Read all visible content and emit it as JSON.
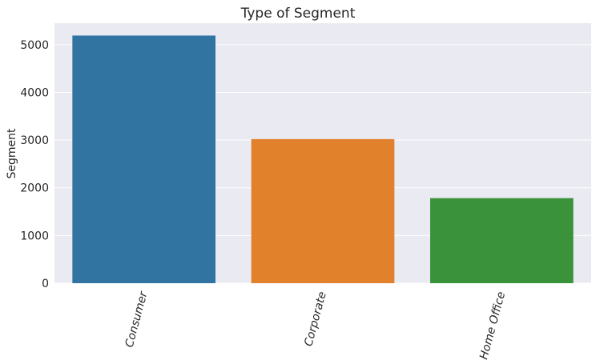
{
  "chart_data": {
    "type": "bar",
    "title": "Type of Segment",
    "xlabel": "",
    "ylabel": "Segment",
    "categories": [
      "Consumer",
      "Corporate",
      "Home Office"
    ],
    "values": [
      5191,
      3020,
      1783
    ],
    "yticks": [
      0,
      1000,
      2000,
      3000,
      4000,
      5000
    ],
    "ytick_labels": [
      "0",
      "1000",
      "2000",
      "3000",
      "4000",
      "5000"
    ],
    "ylim": [
      0,
      5450
    ],
    "colors": [
      "#3274a1",
      "#e1812c",
      "#3a923a"
    ],
    "background": "#eaeaf2",
    "grid": true
  }
}
